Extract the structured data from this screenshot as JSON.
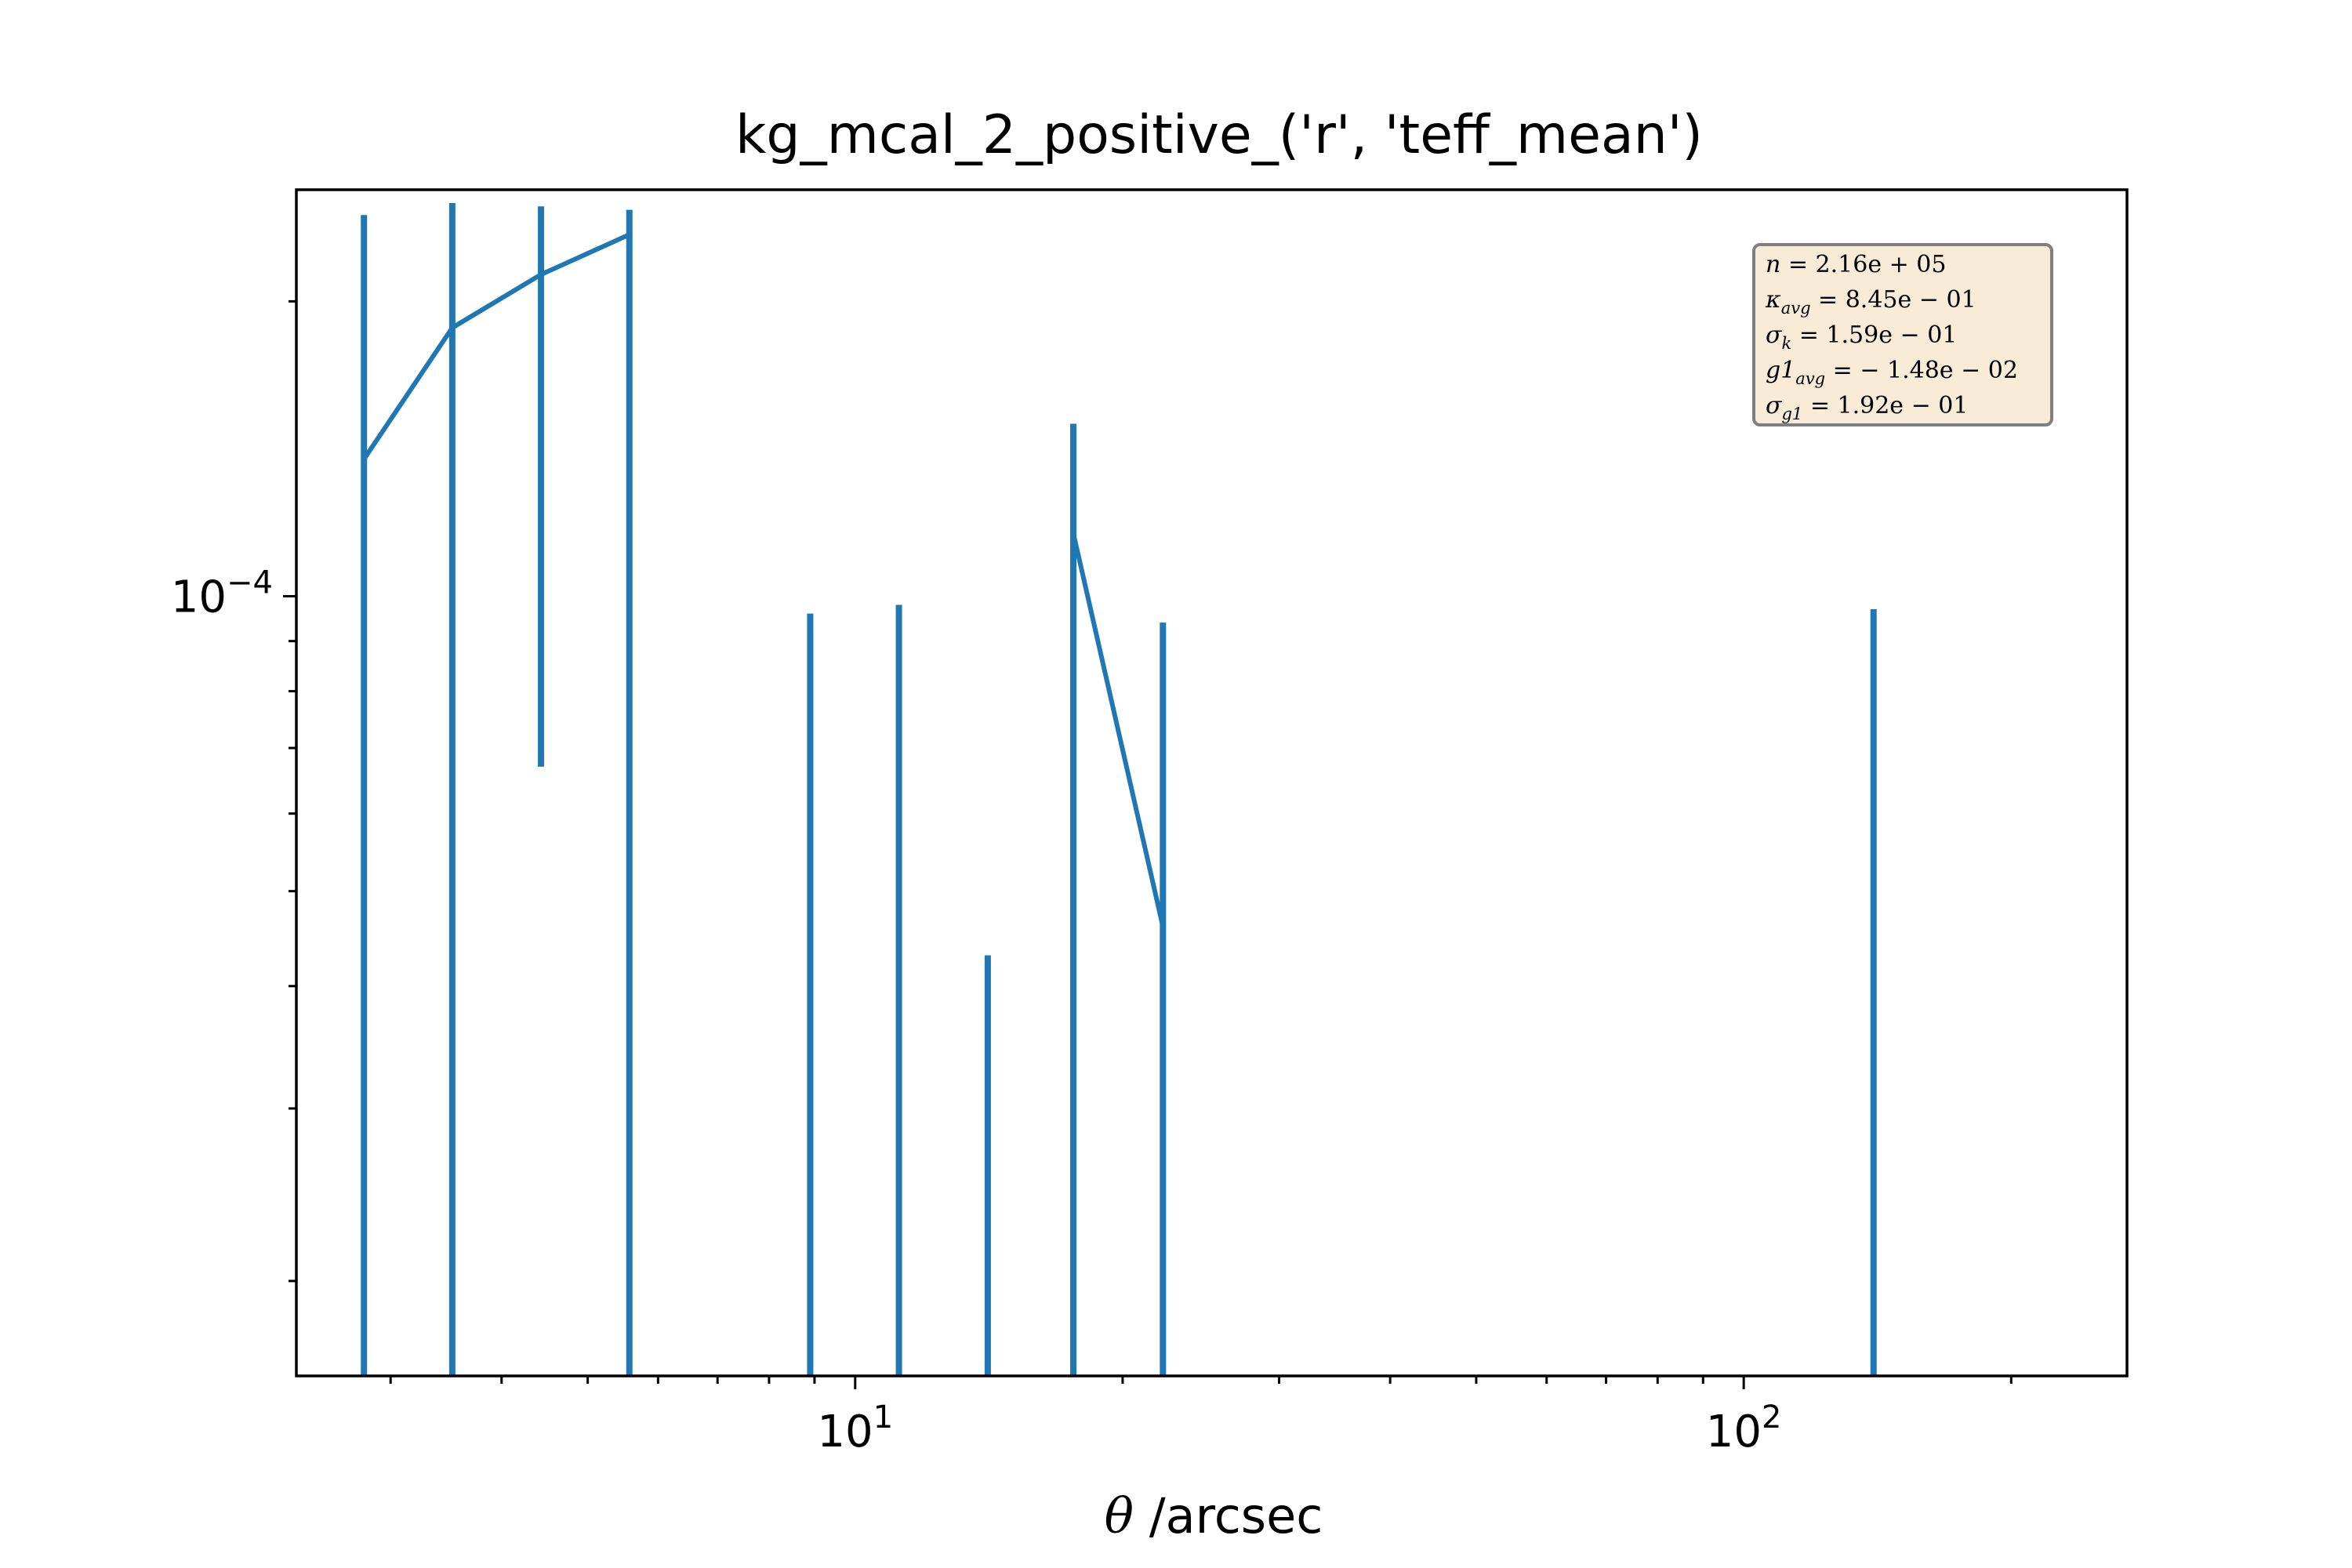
{
  "colors": {
    "series": "#1f77b4",
    "axes": "#000000",
    "stats_fill": "#f8ecd9",
    "stats_border": "#7f7f7f"
  },
  "chart_data": {
    "type": "line",
    "title": "kg_mcal_2_positive_('r', 'teff_mean')",
    "xlabel_symbol": "θ",
    "xlabel": " /arcsec",
    "ylabel": "",
    "xscale": "log",
    "yscale": "log",
    "xlim": [
      2.35,
      270
    ],
    "ylim": [
      1.6e-05,
      0.00026
    ],
    "x_ticks": [
      {
        "value": 10,
        "base": "10",
        "exp": "1"
      },
      {
        "value": 100,
        "base": "10",
        "exp": "2"
      }
    ],
    "y_ticks": [
      {
        "value": 0.0001,
        "base": "10",
        "exp": "−4"
      }
    ],
    "grid": false,
    "line": {
      "x": [
        2.8,
        3.52,
        4.43,
        5.57,
        17.6,
        22.2
      ],
      "y": [
        0.000138,
        0.000188,
        0.000213,
        0.000234,
        0.000116,
        4.6e-05
      ],
      "segments": [
        [
          0,
          4
        ],
        [
          4,
          6
        ]
      ]
    },
    "errorbars": [
      {
        "x": 2.8,
        "y_low": 1.6e-05,
        "y_high": 0.000245
      },
      {
        "x": 3.52,
        "y_low": 1.6e-05,
        "y_high": 0.000252
      },
      {
        "x": 4.43,
        "y_low": 6.7e-05,
        "y_high": 0.00025
      },
      {
        "x": 5.57,
        "y_low": 1.6e-05,
        "y_high": 0.000248
      },
      {
        "x": 8.9,
        "y_low": 1.6e-05,
        "y_high": 9.6e-05
      },
      {
        "x": 11.2,
        "y_low": 1.6e-05,
        "y_high": 9.8e-05
      },
      {
        "x": 14.1,
        "y_low": 1.6e-05,
        "y_high": 4.3e-05
      },
      {
        "x": 17.6,
        "y_low": 1.6e-05,
        "y_high": 0.00015
      },
      {
        "x": 22.2,
        "y_low": 1.6e-05,
        "y_high": 9.4e-05
      },
      {
        "x": 140,
        "y_low": 1.6e-05,
        "y_high": 9.7e-05
      }
    ],
    "stats": {
      "legend_position": "top-right",
      "lines": [
        {
          "sym": "n",
          "sub": "",
          "value": " = 2.16e + 05"
        },
        {
          "sym": "κ",
          "sub": "avg",
          "value": " = 8.45e − 01"
        },
        {
          "sym": "σ",
          "sub": "k",
          "value": " = 1.59e − 01"
        },
        {
          "sym": "g1",
          "sub": "avg",
          "value": " = − 1.48e − 02"
        },
        {
          "sym": "σ",
          "sub": "g1",
          "value": " = 1.92e − 01"
        }
      ]
    }
  }
}
